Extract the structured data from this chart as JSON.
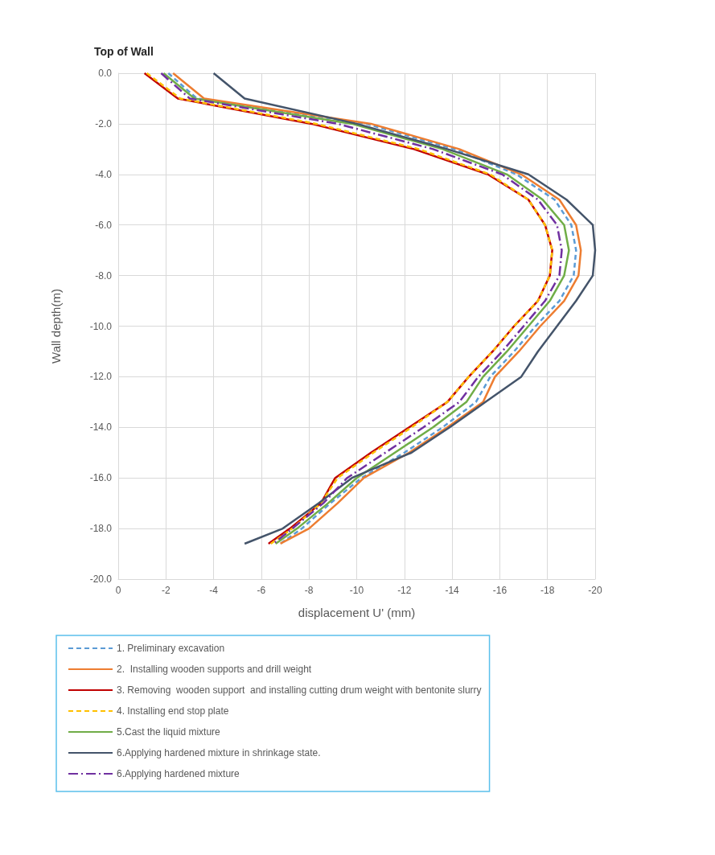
{
  "chart_data": {
    "type": "line",
    "title": "Top of Wall",
    "xlabel": "displacement U' (mm)",
    "ylabel": "Wall depth(m)",
    "xlim": [
      0,
      -20
    ],
    "xticks": [
      0,
      -2,
      -4,
      -6,
      -8,
      -10,
      -12,
      -14,
      -16,
      -18,
      -20
    ],
    "ylim": [
      -20,
      0
    ],
    "yticks": [
      {
        "value": -20,
        "label": "-20.0"
      },
      {
        "value": -18,
        "label": "-18.0"
      },
      {
        "value": -16,
        "label": "-16.0"
      },
      {
        "value": -14,
        "label": "-14.0"
      },
      {
        "value": -12,
        "label": "-12.0"
      },
      {
        "value": -10,
        "label": "-10.0"
      },
      {
        "value": -8,
        "label": "-8.0"
      },
      {
        "value": -6,
        "label": "-6.0"
      },
      {
        "value": -4,
        "label": "-4.0"
      },
      {
        "value": -2,
        "label": "-2.0"
      },
      {
        "value": 0,
        "label": "0.0"
      }
    ],
    "grid": true,
    "legend": "bottom",
    "marker": "none",
    "series": [
      {
        "name": "1. Preliminary excavation",
        "color": "#5b9bd5",
        "line_style": "dashed",
        "x": [
          -2.1,
          -3.3,
          -10.4,
          -14.1,
          -16.7,
          -18.3,
          -19.0,
          -19.2,
          -19.1,
          -18.5,
          -17.5,
          -16.6,
          -15.6,
          -15.0,
          -13.6,
          -12.0,
          -10.2,
          -8.9,
          -7.7,
          -6.8
        ],
        "values": [
          0,
          -1,
          -2,
          -3,
          -4,
          -5,
          -6,
          -7,
          -8,
          -9,
          -10,
          -11,
          -12,
          -13,
          -14,
          -15,
          -16,
          -17,
          -18,
          -18.6
        ]
      },
      {
        "name": "2.  Installing wooden supports and drill weight",
        "color": "#ed7d31",
        "line_style": "solid",
        "x": [
          -2.3,
          -3.6,
          -10.6,
          -14.3,
          -16.9,
          -18.5,
          -19.2,
          -19.4,
          -19.3,
          -18.7,
          -17.7,
          -16.8,
          -15.8,
          -15.3,
          -13.8,
          -12.2,
          -10.3,
          -9.2,
          -8.0,
          -6.8
        ],
        "values": [
          0,
          -1,
          -2,
          -3,
          -4,
          -5,
          -6,
          -7,
          -8,
          -9,
          -10,
          -11,
          -12,
          -13,
          -14,
          -15,
          -16,
          -17,
          -18,
          -18.6
        ]
      },
      {
        "name": "3. Removing  wooden support  and installing cutting drum weight with bentonite slurry",
        "color": "#c00000",
        "line_style": "solid",
        "x": [
          -1.1,
          -2.5,
          -8.1,
          -12.4,
          -15.5,
          -17.2,
          -17.9,
          -18.2,
          -18.1,
          -17.6,
          -16.6,
          -15.7,
          -14.7,
          -13.8,
          -12.2,
          -10.6,
          -9.1,
          -8.5,
          -7.2,
          -6.3
        ],
        "values": [
          0,
          -1,
          -2,
          -3,
          -4,
          -5,
          -6,
          -7,
          -8,
          -9,
          -10,
          -11,
          -12,
          -13,
          -14,
          -15,
          -16,
          -17,
          -18,
          -18.6
        ]
      },
      {
        "name": "4. Installing end stop plate",
        "color": "#ffc000",
        "line_style": "dashed",
        "x": [
          -1.2,
          -2.6,
          -8.3,
          -12.6,
          -15.6,
          -17.2,
          -17.9,
          -18.2,
          -18.1,
          -17.6,
          -16.6,
          -15.7,
          -14.7,
          -13.8,
          -12.3,
          -10.7,
          -9.2,
          -8.5,
          -7.3,
          -6.4
        ],
        "values": [
          0,
          -1,
          -2,
          -3,
          -4,
          -5,
          -6,
          -7,
          -8,
          -9,
          -10,
          -11,
          -12,
          -13,
          -14,
          -15,
          -16,
          -17,
          -18,
          -18.6
        ]
      },
      {
        "name": "5.Cast the liquid mixture",
        "color": "#70ad47",
        "line_style": "solid",
        "x": [
          -1.9,
          -3.2,
          -9.8,
          -13.6,
          -16.3,
          -17.8,
          -18.7,
          -18.9,
          -18.7,
          -18.1,
          -17.2,
          -16.3,
          -15.3,
          -14.6,
          -13.2,
          -11.6,
          -10.0,
          -8.8,
          -7.5,
          -6.6
        ],
        "values": [
          0,
          -1,
          -2,
          -3,
          -4,
          -5,
          -6,
          -7,
          -8,
          -9,
          -10,
          -11,
          -12,
          -13,
          -14,
          -15,
          -16,
          -17,
          -18,
          -18.6
        ]
      },
      {
        "name": "6.Applying hardened mixture in shrinkage state.",
        "color": "#44546a",
        "line_style": "solid",
        "x": [
          -4.0,
          -5.3,
          -10.0,
          -13.8,
          -17.2,
          -18.8,
          -19.9,
          -20.0,
          -19.9,
          -19.2,
          -18.4,
          -17.6,
          -16.9,
          -15.4,
          -13.9,
          -12.3,
          -9.8,
          -8.4,
          -6.9,
          -5.3
        ],
        "values": [
          0,
          -1,
          -2,
          -3,
          -4,
          -5,
          -6,
          -7,
          -8,
          -9,
          -10,
          -11,
          -12,
          -13,
          -14,
          -15,
          -16,
          -17,
          -18,
          -18.6
        ]
      },
      {
        "name": "6.Applying hardened mixture",
        "color": "#7030a0",
        "line_style": "dashdot",
        "x": [
          -1.8,
          -3.0,
          -9.2,
          -13.2,
          -16.1,
          -17.6,
          -18.4,
          -18.6,
          -18.5,
          -17.9,
          -17.0,
          -16.1,
          -15.1,
          -14.3,
          -12.8,
          -11.2,
          -9.6,
          -8.6,
          -7.3,
          -6.5
        ],
        "values": [
          0,
          -1,
          -2,
          -3,
          -4,
          -5,
          -6,
          -7,
          -8,
          -9,
          -10,
          -11,
          -12,
          -13,
          -14,
          -15,
          -16,
          -17,
          -18,
          -18.6
        ]
      }
    ]
  }
}
